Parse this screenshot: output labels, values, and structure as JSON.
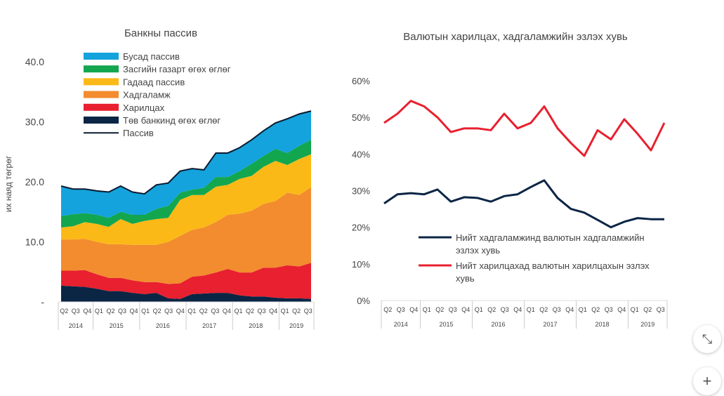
{
  "chart_data": [
    {
      "type": "area",
      "title": "Банкны пассив",
      "ylabel": "их наяд төгрөг",
      "ylim": [
        0,
        40
      ],
      "yticks": [
        "-",
        "10.0",
        "20.0",
        "30.0",
        "40.0"
      ],
      "quarters": [
        "Q2",
        "Q3",
        "Q4",
        "Q1",
        "Q2",
        "Q3",
        "Q4",
        "Q1",
        "Q2",
        "Q3",
        "Q4",
        "Q1",
        "Q2",
        "Q3",
        "Q4",
        "Q1",
        "Q2",
        "Q3",
        "Q4",
        "Q1",
        "Q2",
        "Q3"
      ],
      "years": [
        {
          "label": "2014",
          "span": 3
        },
        {
          "label": "2015",
          "span": 4
        },
        {
          "label": "2016",
          "span": 4
        },
        {
          "label": "2017",
          "span": 4
        },
        {
          "label": "2018",
          "span": 4
        },
        {
          "label": "2019",
          "span": 3
        }
      ],
      "series": [
        {
          "name": "Төв банкинд өгөх өглөг",
          "color": "#0b2545",
          "values": [
            2.7,
            2.6,
            2.5,
            2.2,
            1.8,
            1.8,
            1.5,
            1.3,
            1.5,
            0.6,
            0.5,
            1.3,
            1.4,
            1.5,
            1.5,
            1.1,
            0.9,
            0.9,
            0.7,
            0.6,
            0.6,
            0.5
          ]
        },
        {
          "name": "Харилцах",
          "color": "#e8202f",
          "values": [
            2.5,
            2.6,
            2.8,
            2.4,
            2.2,
            2.2,
            2.1,
            2.0,
            1.8,
            2.4,
            2.6,
            2.9,
            3.0,
            3.4,
            4.0,
            3.8,
            4.0,
            4.8,
            5.0,
            5.5,
            5.3,
            6.0
          ]
        },
        {
          "name": "Хадгаламж",
          "color": "#f28c2e",
          "values": [
            5.2,
            5.2,
            5.2,
            5.4,
            5.6,
            5.6,
            5.9,
            6.2,
            6.2,
            7.0,
            7.9,
            7.8,
            8.0,
            8.4,
            9.0,
            9.8,
            10.3,
            10.6,
            11.1,
            12.1,
            11.9,
            12.6
          ]
        },
        {
          "name": "Гадаад пассив",
          "color": "#fbb917",
          "values": [
            2.0,
            2.2,
            2.8,
            3.0,
            2.9,
            4.2,
            3.5,
            4.0,
            4.3,
            4.0,
            6.0,
            5.8,
            5.4,
            5.9,
            5.0,
            5.8,
            5.8,
            6.2,
            6.7,
            4.6,
            6.0,
            5.5
          ]
        },
        {
          "name": "Засгийн газарт өгөх өглөг",
          "color": "#12a64f",
          "values": [
            1.9,
            2.0,
            1.5,
            1.5,
            1.5,
            1.2,
            1.5,
            1.0,
            1.7,
            2.0,
            1.2,
            0.9,
            1.2,
            1.6,
            1.3,
            1.3,
            2.0,
            1.8,
            2.0,
            2.0,
            2.2,
            2.4
          ]
        },
        {
          "name": "Бусад пассив",
          "color": "#14a3dc",
          "values": [
            5.0,
            4.2,
            4.0,
            4.0,
            4.3,
            4.3,
            3.8,
            3.5,
            4.0,
            3.8,
            3.6,
            3.5,
            3.0,
            4.0,
            4.0,
            3.9,
            4.0,
            4.2,
            4.3,
            5.7,
            5.3,
            4.8
          ]
        }
      ],
      "total_line": {
        "name": "Пассив",
        "color": "#0b1a30"
      },
      "legend_order": [
        "Бусад пассив",
        "Засгийн газарт өгөх өглөг",
        "Гадаад пассив",
        "Хадгаламж",
        "Харилцах",
        "Төв банкинд өгөх өглөг",
        "Пассив"
      ],
      "legend": "top-left"
    },
    {
      "type": "line",
      "title": "Валютын харилцах, хадгаламжийн эзлэх хувь",
      "ylim": [
        0,
        60
      ],
      "yticks": [
        "0%",
        "10%",
        "20%",
        "30%",
        "40%",
        "50%",
        "60%"
      ],
      "quarters": [
        "Q2",
        "Q3",
        "Q4",
        "Q1",
        "Q2",
        "Q3",
        "Q4",
        "Q1",
        "Q2",
        "Q3",
        "Q4",
        "Q1",
        "Q2",
        "Q3",
        "Q4",
        "Q1",
        "Q2",
        "Q3",
        "Q4",
        "Q1",
        "Q2",
        "Q3"
      ],
      "years": [
        {
          "label": "2014",
          "span": 3
        },
        {
          "label": "2015",
          "span": 4
        },
        {
          "label": "2016",
          "span": 4
        },
        {
          "label": "2017",
          "span": 4
        },
        {
          "label": "2018",
          "span": 4
        },
        {
          "label": "2019",
          "span": 3
        }
      ],
      "series": [
        {
          "name": "Нийт хадгаламжинд валютын хадгаламжийн эзлэх хувь",
          "color": "#0b2545",
          "values": [
            26.5,
            29,
            29.3,
            29,
            30.3,
            27,
            28.2,
            28,
            27,
            28.5,
            29,
            31,
            32.8,
            28,
            25,
            24,
            22,
            20,
            21.5,
            22.5,
            22.2,
            22.2
          ]
        },
        {
          "name": "Нийт харилцахад валютын харилцахын эзлэх хувь",
          "color": "#e8202f",
          "values": [
            48.5,
            51,
            54.5,
            53,
            50,
            46,
            47,
            47,
            46.5,
            51,
            47,
            48.5,
            53,
            47,
            43,
            39.5,
            46.5,
            44,
            49.5,
            45.5,
            41,
            48.5
          ]
        }
      ],
      "legend": "bottom-right"
    }
  ],
  "controls": {
    "collapse_icon": "⤡",
    "add_icon": "+"
  }
}
